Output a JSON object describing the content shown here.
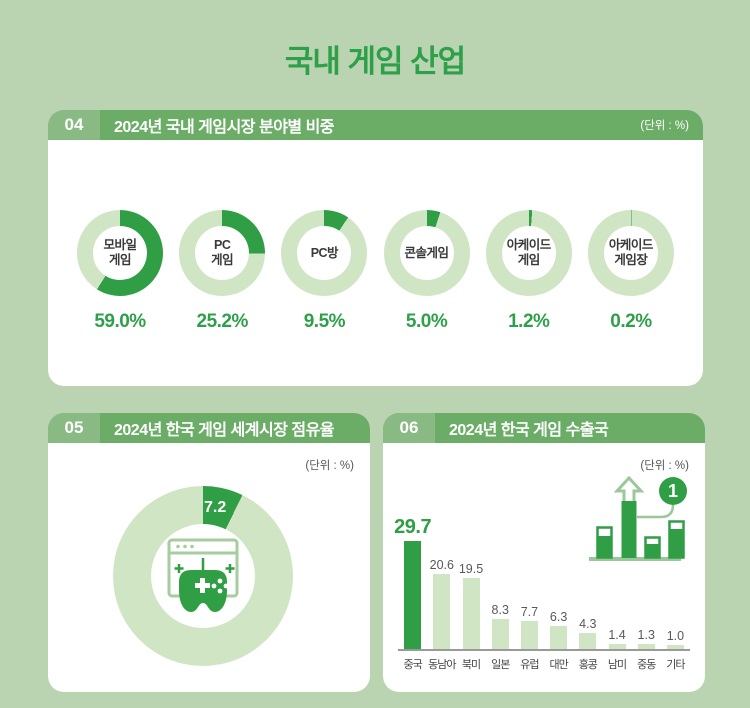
{
  "page": {
    "title": "국내 게임 산업"
  },
  "colors": {
    "background": "#bad4b2",
    "panel": "#ffffff",
    "header_bar": "#6bac67",
    "header_number_box": "#8aba84",
    "accent_dark": "#2f9e45",
    "accent_light": "#cfe5c4",
    "accent_text": "#2fa04a",
    "text_dark": "#3a3a3a",
    "text_gray": "#595959"
  },
  "sections": {
    "domestic_share": {
      "number": "04",
      "title": "2024년 국내 게임시장 분야별 비중",
      "unit": "(단위 : %)"
    },
    "world_share": {
      "number": "05",
      "title": "2024년 한국 게임 세계시장 점유율",
      "unit": "(단위 : %)"
    },
    "export_countries": {
      "number": "06",
      "title": "2024년 한국 게임 수출국",
      "unit": "(단위 : %)",
      "rank_badge": "1"
    }
  },
  "chart_data": [
    {
      "type": "pie",
      "variant": "donut-small-multiples",
      "title": "2024년 국내 게임시장 분야별 비중",
      "unit": "%",
      "items": [
        {
          "label": "모바일 게임",
          "label_lines": [
            "모바일",
            "게임"
          ],
          "value": 59.0,
          "display": "59.0%"
        },
        {
          "label": "PC 게임",
          "label_lines": [
            "PC",
            "게임"
          ],
          "value": 25.2,
          "display": "25.2%"
        },
        {
          "label": "PC방",
          "label_lines": [
            "PC방"
          ],
          "value": 9.5,
          "display": "9.5%"
        },
        {
          "label": "콘솔게임",
          "label_lines": [
            "콘솔게임"
          ],
          "value": 5.0,
          "display": "5.0%"
        },
        {
          "label": "아케이드 게임",
          "label_lines": [
            "아케이드",
            "게임"
          ],
          "value": 1.2,
          "display": "1.2%"
        },
        {
          "label": "아케이드 게임장",
          "label_lines": [
            "아케이드",
            "게임장"
          ],
          "value": 0.2,
          "display": "0.2%"
        }
      ]
    },
    {
      "type": "pie",
      "variant": "donut",
      "title": "2024년 한국 게임 세계시장 점유율",
      "unit": "%",
      "value": 7.2,
      "display": "7.2",
      "remainder": 92.8,
      "center_icon": "gamepad-browser-icon"
    },
    {
      "type": "bar",
      "title": "2024년 한국 게임 수출국",
      "unit": "%",
      "categories": [
        "중국",
        "동남아",
        "북미",
        "일본",
        "유럽",
        "대만",
        "홍콩",
        "남미",
        "중동",
        "기타"
      ],
      "values": [
        29.7,
        20.6,
        19.5,
        8.3,
        7.7,
        6.3,
        4.3,
        1.4,
        1.3,
        1.0
      ],
      "highlight_index": 0,
      "ylim": [
        0,
        30
      ],
      "grid": false,
      "legend": false,
      "rank_badge": "1"
    }
  ]
}
